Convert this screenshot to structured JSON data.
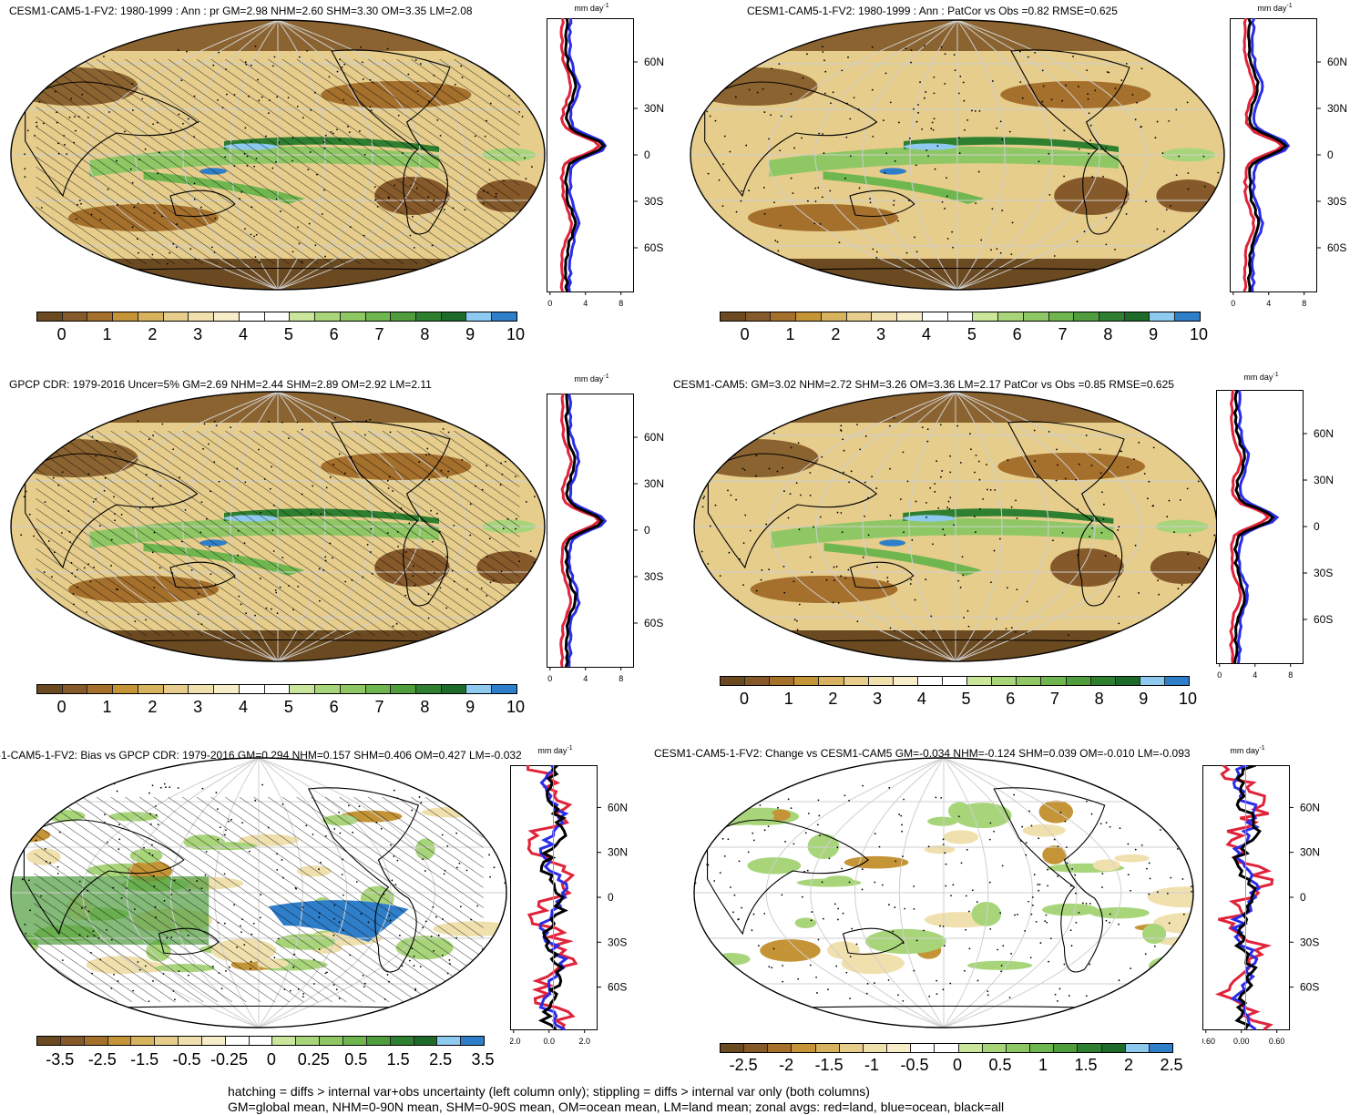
{
  "unit": "mm day",
  "unit_exponent": "-1",
  "panels": [
    {
      "title": "CESM1-CAM5-1-FV2: 1980-1999 : Ann : pr GM=2.98 NHM=2.60 SHM=3.30 OM=3.35 LM=2.08",
      "colorbar_labels": [
        "0",
        "1",
        "2",
        "3",
        "4",
        "5",
        "6",
        "7",
        "8",
        "9",
        "10"
      ],
      "zonal_x_ticks": [
        "0",
        "4",
        "8"
      ],
      "zonal_y_ticks": [
        "60N",
        "30N",
        "0",
        "30S",
        "60S"
      ]
    },
    {
      "title": "CESM1-CAM5-1-FV2: 1980-1999 : Ann : PatCor vs Obs =0.82 RMSE=0.625",
      "colorbar_labels": [
        "0",
        "1",
        "2",
        "3",
        "4",
        "5",
        "6",
        "7",
        "8",
        "9",
        "10"
      ],
      "zonal_x_ticks": [
        "0",
        "4",
        "8"
      ],
      "zonal_y_ticks": [
        "60N",
        "30N",
        "0",
        "30S",
        "60S"
      ]
    },
    {
      "title": "GPCP CDR: 1979-2016 Uncer=5% GM=2.69 NHM=2.44 SHM=2.89 OM=2.92 LM=2.11",
      "colorbar_labels": [
        "0",
        "1",
        "2",
        "3",
        "4",
        "5",
        "6",
        "7",
        "8",
        "9",
        "10"
      ],
      "zonal_x_ticks": [
        "0",
        "4",
        "8"
      ],
      "zonal_y_ticks": [
        "60N",
        "30N",
        "0",
        "30S",
        "60S"
      ]
    },
    {
      "title": "CESM1-CAM5: GM=3.02 NHM=2.72 SHM=3.26 OM=3.36 LM=2.17 PatCor vs Obs =0.85 RMSE=0.625",
      "colorbar_labels": [
        "0",
        "1",
        "2",
        "3",
        "4",
        "5",
        "6",
        "7",
        "8",
        "9",
        "10"
      ],
      "zonal_x_ticks": [
        "0",
        "4",
        "8"
      ],
      "zonal_y_ticks": [
        "60N",
        "30N",
        "0",
        "30S",
        "60S"
      ]
    },
    {
      "title": "-1-CAM5-1-FV2: Bias vs GPCP CDR: 1979-2016 GM=0.294 NHM=0.157 SHM=0.406 OM=0.427 LM=-0.032",
      "colorbar_labels": [
        "-3.5",
        "-2.5",
        "-1.5",
        "-0.5",
        "-0.25",
        "0",
        "0.25",
        "0.5",
        "1.5",
        "2.5",
        "3.5"
      ],
      "zonal_x_ticks": [
        "-2.0",
        "0.0",
        "2.0"
      ],
      "zonal_y_ticks": [
        "60N",
        "30N",
        "0",
        "30S",
        "60S"
      ]
    },
    {
      "title": "CESM1-CAM5-1-FV2: Change vs CESM1-CAM5 GM=-0.034 NHM=-0.124 SHM=0.039 OM=-0.010 LM=-0.093",
      "colorbar_labels": [
        "-2.5",
        "-2",
        "-1.5",
        "-1",
        "-0.5",
        "0",
        "0.5",
        "1",
        "1.5",
        "2",
        "2.5"
      ],
      "zonal_x_ticks": [
        "-0.60",
        "0.00",
        "0.60"
      ],
      "zonal_y_ticks": [
        "60N",
        "30N",
        "0",
        "30S",
        "60S"
      ]
    }
  ],
  "colors": {
    "absolute_scale": [
      "#6b4a21",
      "#86592a",
      "#a56f2c",
      "#c49437",
      "#d7b35e",
      "#e6cd8c",
      "#f0e0ad",
      "#f7eec9",
      "#ffffff",
      "#ffffff",
      "#c9e69a",
      "#a8d57a",
      "#8ec764",
      "#6fb64f",
      "#4f9d3d",
      "#2f7f30",
      "#1e6a2a",
      "#8ec9f0",
      "#2f7ec9"
    ],
    "diff_scale": [
      "#6b4a21",
      "#86592a",
      "#a56f2c",
      "#c49437",
      "#d7b35e",
      "#e6cd8c",
      "#f0e0ad",
      "#f7eec9",
      "#ffffff",
      "#ffffff",
      "#c9e69a",
      "#a8d57a",
      "#8ec764",
      "#6fb64f",
      "#4f9d3d",
      "#2f7f30",
      "#1e6a2a",
      "#8ec9f0",
      "#2f7ec9"
    ],
    "land": "#e0233a",
    "ocean": "#2a2ce8",
    "all": "#000000"
  },
  "footer": {
    "line1": "hatching = diffs > internal var+obs uncertainty (left column only); stippling = diffs > internal var only (both columns)",
    "line2": "GM=global mean, NHM=0-90N mean, SHM=0-90S mean, OM=ocean mean, LM=land mean; zonal avgs: red=land, blue=ocean, black=all"
  }
}
